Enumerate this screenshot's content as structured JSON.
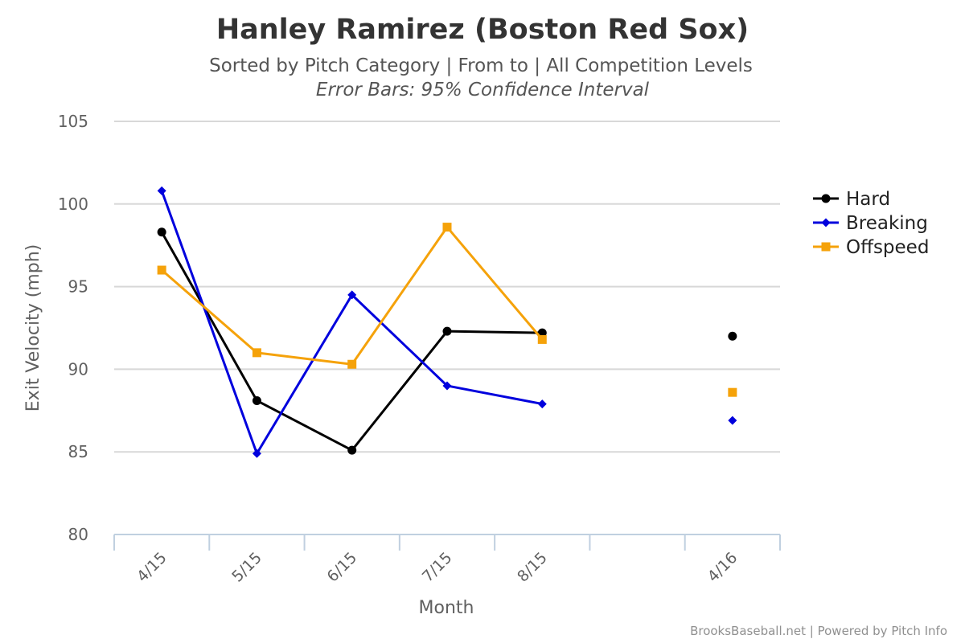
{
  "chart_data": {
    "type": "line",
    "title": "Hanley Ramirez (Boston Red Sox)",
    "subtitle": "Sorted by Pitch Category | From to | All Competition Levels",
    "subtitle2": "Error Bars: 95% Confidence Interval",
    "xlabel": "Month",
    "ylabel": "Exit Velocity (mph)",
    "categories": [
      "4/15",
      "5/15",
      "6/15",
      "7/15",
      "8/15",
      "",
      "4/16"
    ],
    "ylim": [
      80,
      105
    ],
    "yticks": [
      80,
      85,
      90,
      95,
      100,
      105
    ],
    "grid": true,
    "legend_position": "right",
    "series": [
      {
        "name": "Hard",
        "color": "#000000",
        "marker": "circle",
        "values": [
          98.3,
          88.1,
          85.1,
          92.3,
          92.2,
          null,
          92.0
        ]
      },
      {
        "name": "Breaking",
        "color": "#0000dd",
        "marker": "diamond",
        "values": [
          100.8,
          84.9,
          94.5,
          89.0,
          87.9,
          null,
          86.9
        ]
      },
      {
        "name": "Offspeed",
        "color": "#f5a20a",
        "marker": "square",
        "values": [
          96.0,
          91.0,
          90.3,
          98.6,
          91.8,
          null,
          88.6
        ]
      }
    ]
  },
  "credit": "BrooksBaseball.net | Powered by Pitch Info"
}
